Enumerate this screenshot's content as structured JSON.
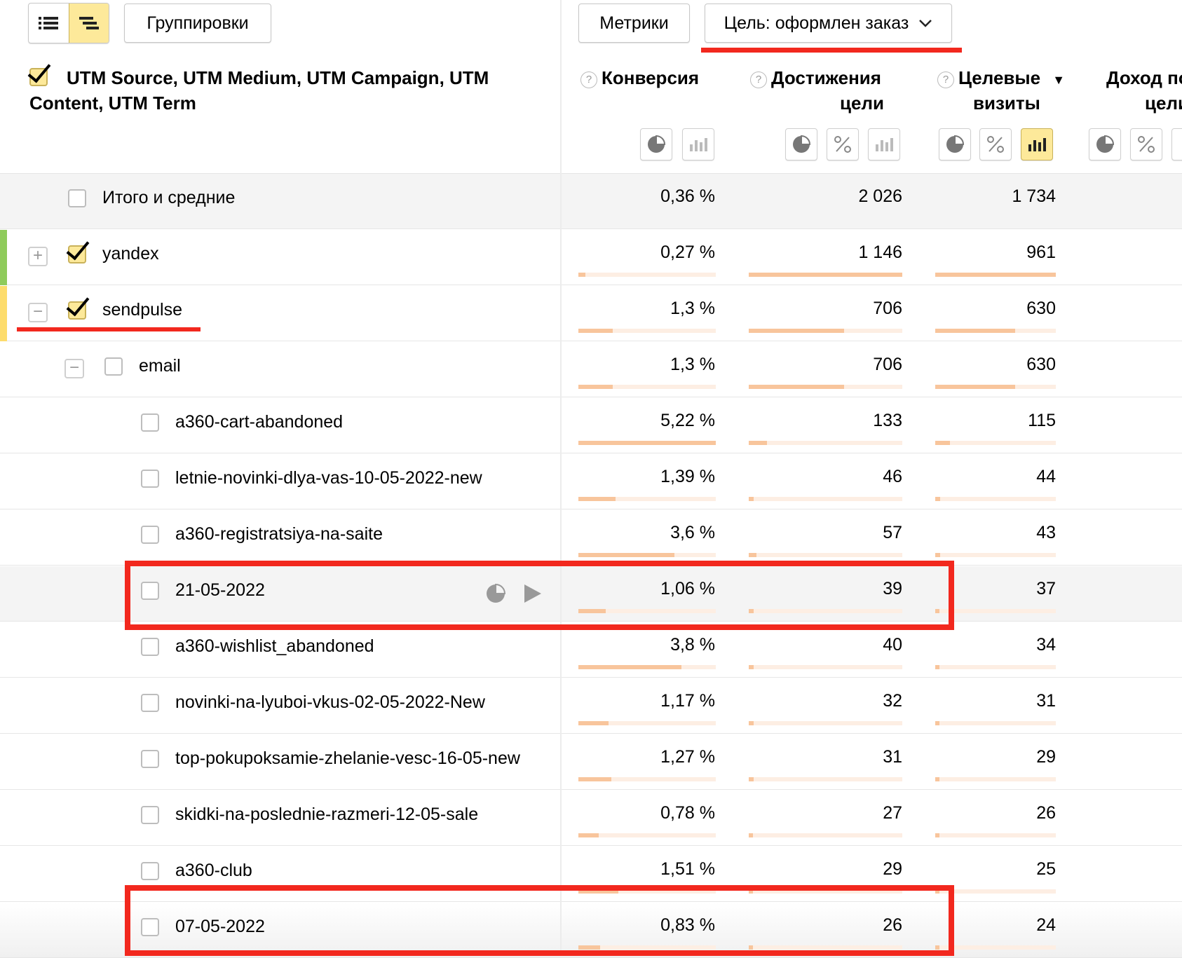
{
  "toolbar": {
    "groupings_label": "Группировки",
    "metrics_label": "Метрики",
    "goal_label": "Цель: оформлен заказ"
  },
  "header": {
    "dimension_title_line1": "UTM Source, UTM Medium, UTM Campaign, UTM",
    "dimension_title_line2": "Content, UTM Term",
    "columns": [
      {
        "line1": "Конверсия",
        "line2": ""
      },
      {
        "line1": "Достижения",
        "line2": "цели"
      },
      {
        "line1": "Целевые",
        "line2": "визиты",
        "sort": "▼"
      },
      {
        "line1": "Доход по",
        "line2": "цели"
      }
    ]
  },
  "rows": [
    {
      "label": "Итого и средние",
      "conv": "0,36 %",
      "goals": "2 026",
      "visits": "1 734"
    },
    {
      "label": "yandex",
      "conv": "0,27 %",
      "goals": "1 146",
      "visits": "961",
      "bars": [
        0.05,
        1.0,
        1.0
      ]
    },
    {
      "label": "sendpulse",
      "conv": "1,3 %",
      "goals": "706",
      "visits": "630",
      "bars": [
        0.25,
        0.62,
        0.66
      ]
    },
    {
      "label": "email",
      "conv": "1,3 %",
      "goals": "706",
      "visits": "630",
      "bars": [
        0.25,
        0.62,
        0.66
      ]
    },
    {
      "label": "a360-cart-abandoned",
      "conv": "5,22 %",
      "goals": "133",
      "visits": "115",
      "bars": [
        1.0,
        0.12,
        0.12
      ]
    },
    {
      "label": "letnie-novinki-dlya-vas-10-05-2022-new",
      "conv": "1,39 %",
      "goals": "46",
      "visits": "44",
      "bars": [
        0.27,
        0.03,
        0.04
      ]
    },
    {
      "label": "a360-registratsiya-na-saite",
      "conv": "3,6 %",
      "goals": "57",
      "visits": "43",
      "bars": [
        0.7,
        0.05,
        0.04
      ]
    },
    {
      "label": "21-05-2022",
      "conv": "1,06 %",
      "goals": "39",
      "visits": "37",
      "bars": [
        0.2,
        0.03,
        0.03
      ]
    },
    {
      "label": "a360-wishlist_abandoned",
      "conv": "3,8 %",
      "goals": "40",
      "visits": "34",
      "bars": [
        0.75,
        0.03,
        0.03
      ]
    },
    {
      "label": "novinki-na-lyuboi-vkus-02-05-2022-New",
      "conv": "1,17 %",
      "goals": "32",
      "visits": "31",
      "bars": [
        0.22,
        0.03,
        0.03
      ]
    },
    {
      "label": "top-pokupoksamie-zhelanie-vesc-16-05-new",
      "conv": "1,27 %",
      "goals": "31",
      "visits": "29",
      "bars": [
        0.24,
        0.03,
        0.03
      ]
    },
    {
      "label": "skidki-na-poslednie-razmeri-12-05-sale",
      "conv": "0,78 %",
      "goals": "27",
      "visits": "26",
      "bars": [
        0.15,
        0.02,
        0.02
      ]
    },
    {
      "label": "a360-club",
      "conv": "1,51 %",
      "goals": "29",
      "visits": "25",
      "bars": [
        0.29,
        0.02,
        0.02
      ]
    },
    {
      "label": "07-05-2022",
      "conv": "0,83 %",
      "goals": "26",
      "visits": "24",
      "bars": [
        0.16,
        0.02,
        0.02
      ]
    }
  ],
  "colors": {
    "accent_yellow": "#fde99a",
    "highlight_red": "#f2281e",
    "bar_fill": "#f8c59c",
    "bar_track": "#fdeee3"
  }
}
